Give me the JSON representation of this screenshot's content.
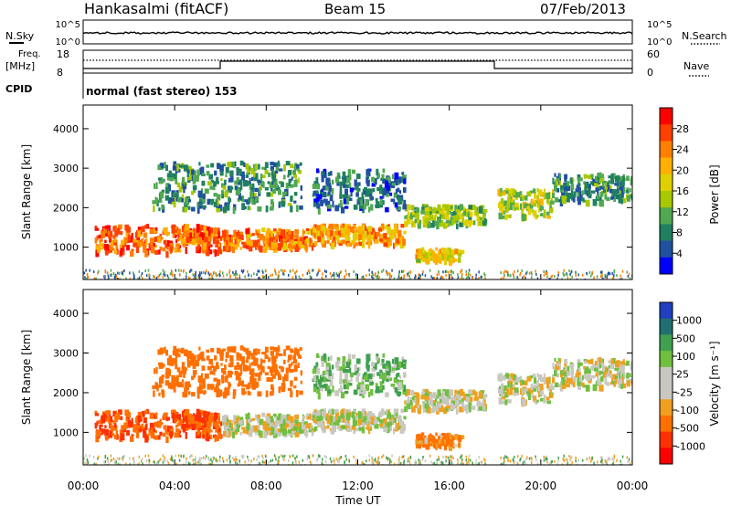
{
  "header": {
    "station": "Hankasalmi (fitACF)",
    "beam": "Beam 15",
    "date": "07/Feb/2013"
  },
  "noise_panel": {
    "left_label": "N.Sky",
    "right_label": "N.Search",
    "left_ticks": [
      "10^5",
      "10^0"
    ],
    "right_ticks": [
      "10^5",
      "10^0"
    ]
  },
  "freq_panel": {
    "left_label_1": "Freq.",
    "left_label_2": "[MHz]",
    "right_label": "Nave",
    "left_ticks": [
      "18",
      "8"
    ],
    "right_ticks": [
      "60",
      "0"
    ]
  },
  "cpid": {
    "label": "CPID",
    "text": "normal (fast stereo) 153"
  },
  "power_colorbar": {
    "label": "Power [dB]",
    "ticks": [
      "28",
      "24",
      "20",
      "16",
      "12",
      "8",
      "4"
    ],
    "colors": [
      "#ff0000",
      "#ff4000",
      "#ff8000",
      "#ffb000",
      "#e0d000",
      "#a8c800",
      "#50a850",
      "#208060",
      "#2050a0",
      "#0000ff"
    ]
  },
  "velocity_colorbar": {
    "label": "Velocity [m s⁻¹]",
    "ticks": [
      "1000",
      "500",
      "100",
      "25",
      "-25",
      "-100",
      "-500",
      "-1000"
    ],
    "colors": [
      "#2040c0",
      "#207070",
      "#40a050",
      "#70c040",
      "#c8c8c0",
      "#c8c8c0",
      "#f0a020",
      "#ff7000",
      "#ff3000",
      "#ff0000"
    ]
  },
  "axes": {
    "ylabel": "Slant Range [km]",
    "xlabel": "Time UT",
    "y_ticks": [
      "4000",
      "3000",
      "2000",
      "1000"
    ],
    "x_ticks": [
      "00:00",
      "04:00",
      "08:00",
      "12:00",
      "16:00",
      "20:00",
      "00:00"
    ]
  },
  "chart_data": {
    "type": "heatmap",
    "x_range_hours": [
      0,
      24
    ],
    "y_range_km": [
      180,
      4600
    ],
    "gap_hours": [
      17.6,
      18.1
    ],
    "echo_regions": [
      {
        "t0": 0.5,
        "t1": 6.0,
        "r0": 900,
        "r1": 1600,
        "power": 26,
        "velocity": -300
      },
      {
        "t0": 6.0,
        "t1": 10.0,
        "r0": 1000,
        "r1": 1500,
        "power": 24,
        "velocity": 0
      },
      {
        "t0": 10.0,
        "t1": 14.0,
        "r0": 1100,
        "r1": 1600,
        "power": 22,
        "velocity": 0
      },
      {
        "t0": 14.0,
        "t1": 17.5,
        "r0": 1600,
        "r1": 2100,
        "power": 14,
        "velocity": 0
      },
      {
        "t0": 14.5,
        "t1": 16.5,
        "r0": 700,
        "r1": 1000,
        "power": 18,
        "velocity": -80
      },
      {
        "t0": 18.1,
        "t1": 20.5,
        "r0": 1800,
        "r1": 2500,
        "power": 16,
        "velocity": 0
      },
      {
        "t0": 20.5,
        "t1": 24.0,
        "r0": 2200,
        "r1": 2900,
        "power": 10,
        "velocity": 0
      },
      {
        "t0": 3.0,
        "t1": 9.5,
        "r0": 2000,
        "r1": 3200,
        "power": 10,
        "velocity": -200
      },
      {
        "t0": 10.0,
        "t1": 14.0,
        "r0": 2000,
        "r1": 3000,
        "power": 8,
        "velocity": 60
      }
    ]
  }
}
